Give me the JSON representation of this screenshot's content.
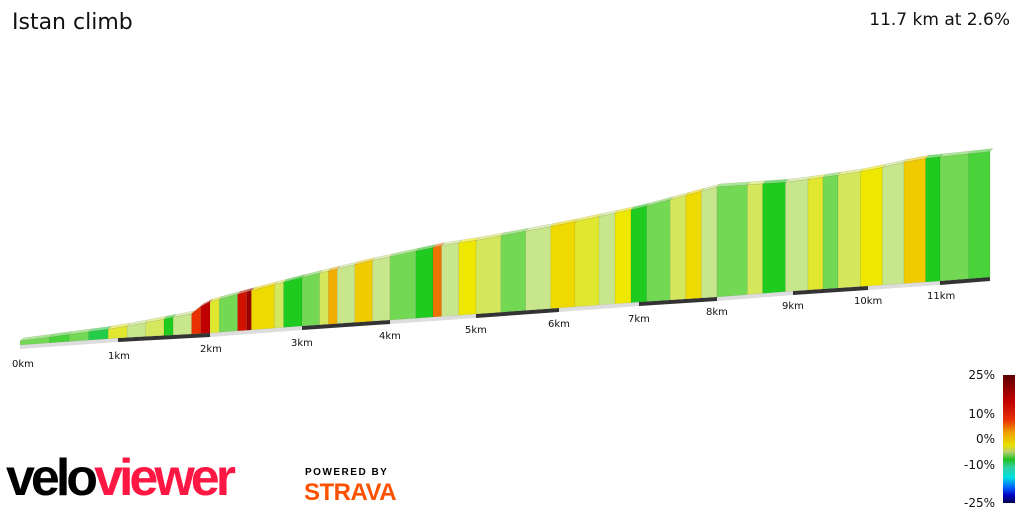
{
  "header": {
    "title": "Istan climb",
    "summary": "11.7 km at 2.6%"
  },
  "chart_data": {
    "type": "area",
    "xlabel": "",
    "ylabel": "",
    "distance_ticks": [
      "0km",
      "1km",
      "2km",
      "3km",
      "4km",
      "5km",
      "6km",
      "7km",
      "8km",
      "9km",
      "10km",
      "11km"
    ],
    "xlim": [
      0,
      11.7
    ],
    "profile": {
      "distance_km": [
        0,
        1,
        1.8,
        1.95,
        2.4,
        3,
        3.8,
        4.6,
        5,
        6,
        7,
        8,
        9,
        10,
        10.7,
        11.7
      ],
      "elevation_rel_m": [
        0,
        15,
        40,
        65,
        85,
        110,
        140,
        165,
        172,
        195,
        222,
        262,
        260,
        275,
        295,
        300
      ]
    },
    "segments": [
      [
        0,
        1
      ],
      [
        0.3,
        0.5
      ],
      [
        0.5,
        1
      ],
      [
        0.7,
        -1
      ],
      [
        0.9,
        4
      ],
      [
        1.1,
        2
      ],
      [
        1.3,
        3
      ],
      [
        1.5,
        0
      ],
      [
        1.6,
        2
      ],
      [
        1.8,
        15
      ],
      [
        1.9,
        20
      ],
      [
        2.0,
        4
      ],
      [
        2.1,
        1
      ],
      [
        2.3,
        18
      ],
      [
        2.4,
        22
      ],
      [
        2.45,
        6
      ],
      [
        2.7,
        3
      ],
      [
        2.8,
        0
      ],
      [
        3.0,
        1
      ],
      [
        3.2,
        3
      ],
      [
        3.3,
        9
      ],
      [
        3.4,
        2
      ],
      [
        3.6,
        7
      ],
      [
        3.8,
        2
      ],
      [
        4.0,
        1
      ],
      [
        4.3,
        0
      ],
      [
        4.5,
        12
      ],
      [
        4.6,
        2
      ],
      [
        4.8,
        5
      ],
      [
        5.0,
        3
      ],
      [
        5.3,
        1
      ],
      [
        5.6,
        2
      ],
      [
        5.9,
        6
      ],
      [
        6.2,
        4
      ],
      [
        6.5,
        2
      ],
      [
        6.7,
        5
      ],
      [
        6.9,
        0
      ],
      [
        7.1,
        1
      ],
      [
        7.4,
        3
      ],
      [
        7.6,
        6
      ],
      [
        7.8,
        2
      ],
      [
        8.0,
        1
      ],
      [
        8.4,
        3
      ],
      [
        8.6,
        0
      ],
      [
        8.9,
        2
      ],
      [
        9.2,
        4
      ],
      [
        9.4,
        1
      ],
      [
        9.6,
        3
      ],
      [
        9.9,
        5
      ],
      [
        10.2,
        2
      ],
      [
        10.5,
        7
      ],
      [
        10.8,
        0
      ],
      [
        11.0,
        1
      ],
      [
        11.4,
        0.5
      ]
    ],
    "legend": {
      "labels": [
        "25%",
        "10%",
        "0%",
        "-10%",
        "-25%"
      ]
    },
    "colors": {
      "dark_red": "#6b0000",
      "red": "#d40000",
      "orange": "#f0a000",
      "yellow": "#eee800",
      "light": "#dfe39a",
      "green": "#1ecb1e",
      "cyan": "#00dede",
      "blue": "#0030ff",
      "navy": "#000050"
    }
  },
  "branding": {
    "logo_a": "velo",
    "logo_b": "viewer",
    "powered": "POWERED BY",
    "strava": "STRAVA"
  }
}
